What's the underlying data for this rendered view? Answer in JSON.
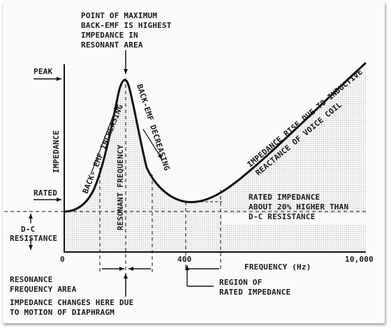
{
  "chart_data": {
    "type": "line",
    "x_label": "FREQUENCY (Hz)",
    "x_ticks": [
      "0",
      "400",
      "10,000"
    ],
    "y_label": "IMPEDANCE",
    "y_markers": {
      "peak": "PEAK",
      "rated": "RATED",
      "dc": "D-C RESISTANCE"
    },
    "annotations": {
      "max_point": [
        "POINT OF MAXIMUM",
        "BACK-EMF IS HIGHEST",
        "IMPEDANCE IN",
        "RESONANT AREA"
      ],
      "rising": "BACK- EMF INCREASING",
      "resonant": "RESONANT FREQUENCY",
      "falling": "BACK-EMF DECREASING",
      "inductive": [
        "IMPEDANCE RISE DUE TO INDUCTIVE",
        "REACTANCE OF VOICE COIL"
      ],
      "rated_note": [
        "RATED IMPEDANCE",
        "ABOUT 20% HIGHER THAN",
        "D-C RESISTANCE"
      ],
      "resonance_area": [
        "RESONANCE",
        "FREQUENCY AREA"
      ],
      "diaphragm": [
        "IMPEDANCE CHANGES HERE DUE",
        "TO MOTION OF DIAPHRAGM"
      ],
      "rated_region": [
        "REGION OF",
        "RATED IMPEDANCE"
      ]
    }
  }
}
